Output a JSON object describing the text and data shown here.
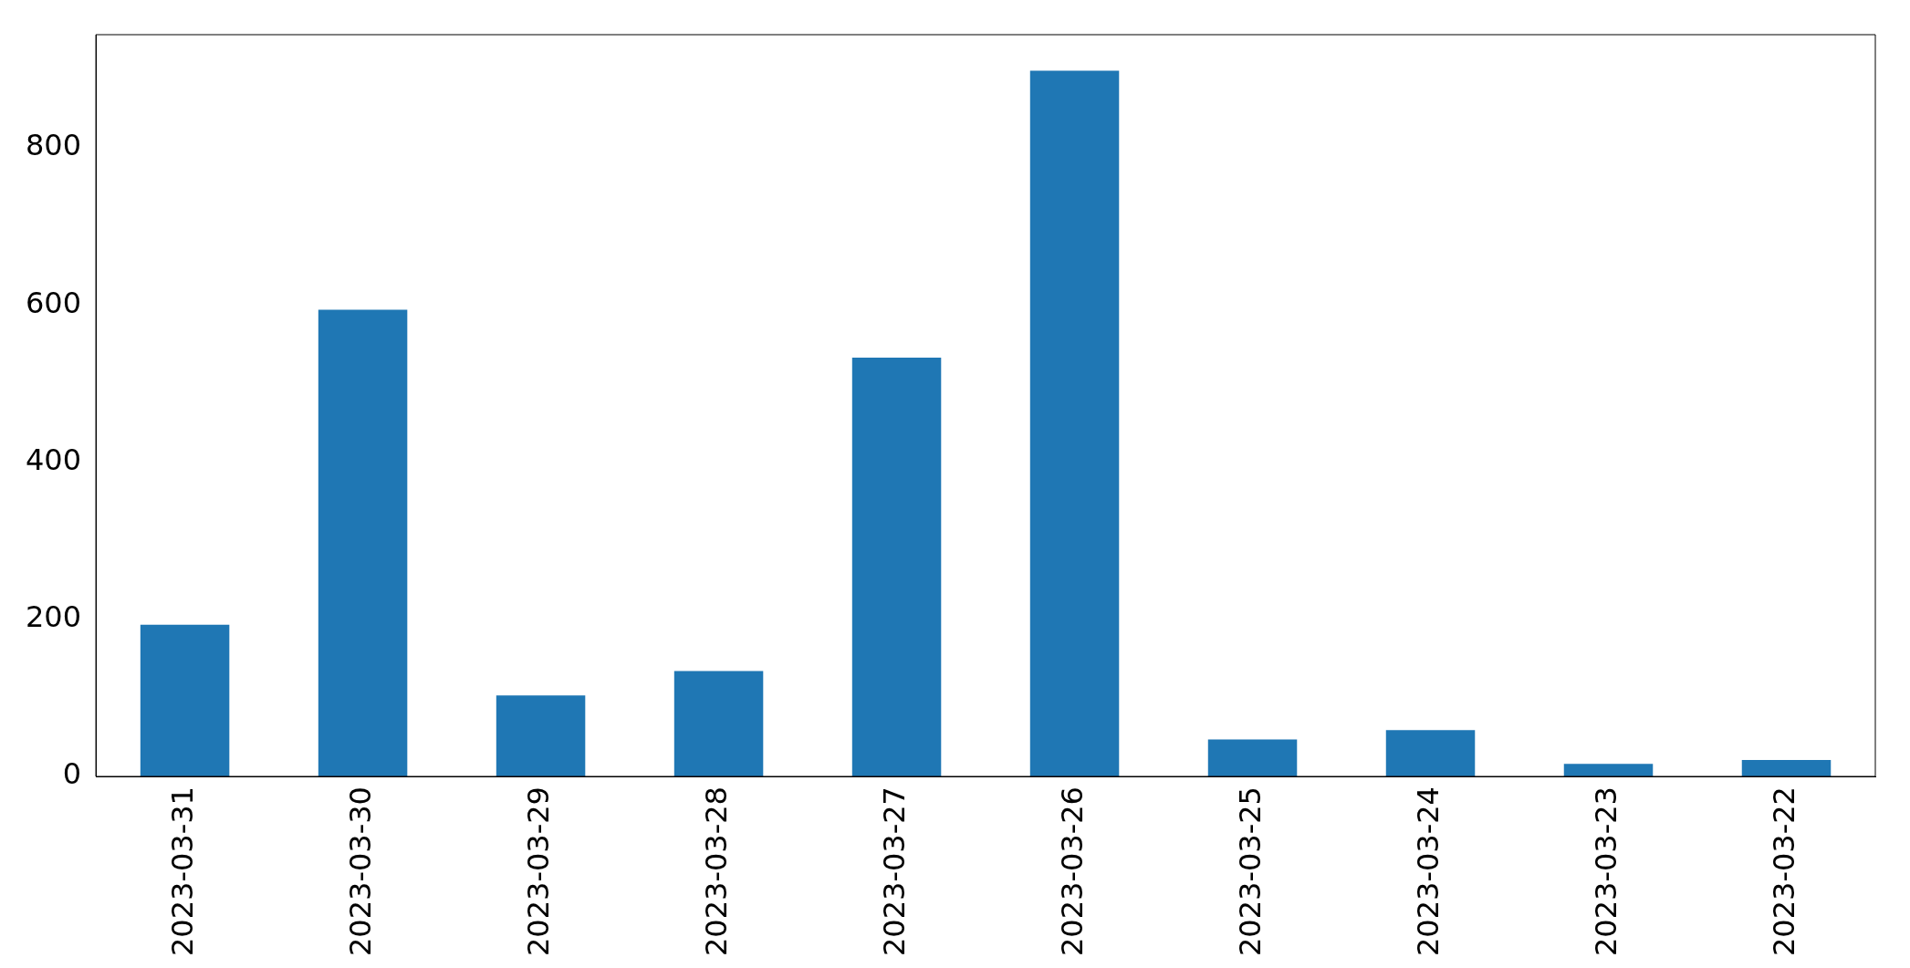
{
  "chart_data": {
    "type": "bar",
    "categories": [
      "2023-03-31",
      "2023-03-30",
      "2023-03-29",
      "2023-03-28",
      "2023-03-27",
      "2023-03-26",
      "2023-03-25",
      "2023-03-24",
      "2023-03-23",
      "2023-03-22"
    ],
    "values": [
      193,
      594,
      103,
      134,
      533,
      898,
      47,
      59,
      16,
      21
    ],
    "color": "#1f77b4",
    "ylim": [
      0,
      944
    ],
    "yticks": [
      0,
      200,
      400,
      600,
      800
    ],
    "grid": false,
    "legend": false
  }
}
